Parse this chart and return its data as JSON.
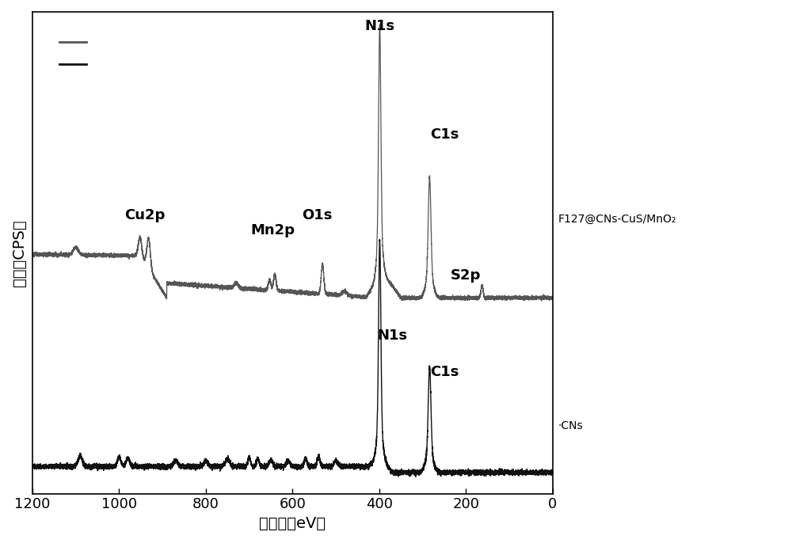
{
  "xlabel": "结合能（eV）",
  "ylabel": "强度（CPS）",
  "xlim": [
    1200,
    0
  ],
  "xticks": [
    1200,
    1000,
    800,
    600,
    400,
    200,
    0
  ],
  "line1_color": "#555555",
  "line2_color": "#111111",
  "legend_label1": "F127@CNs-CuS/MnO₂",
  "legend_label2": "CNs"
}
